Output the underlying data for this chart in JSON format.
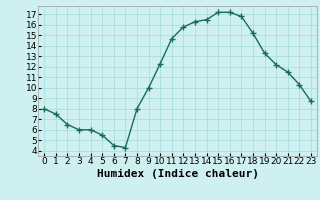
{
  "x": [
    0,
    1,
    2,
    3,
    4,
    5,
    6,
    7,
    8,
    9,
    10,
    11,
    12,
    13,
    14,
    15,
    16,
    17,
    18,
    19,
    20,
    21,
    22,
    23
  ],
  "y": [
    8,
    7.5,
    6.5,
    6,
    6,
    5.5,
    4.5,
    4.3,
    8,
    10,
    12.3,
    14.7,
    15.8,
    16.3,
    16.5,
    17.2,
    17.2,
    16.8,
    15.2,
    13.3,
    12.2,
    11.5,
    10.3,
    8.7
  ],
  "line_color": "#1a6b5a",
  "marker": "+",
  "marker_size": 4,
  "marker_edge_width": 1.0,
  "bg_color": "#cff0f0",
  "grid_color": "#aadddd",
  "xlabel": "Humidex (Indice chaleur)",
  "xlim": [
    -0.5,
    23.5
  ],
  "ylim": [
    3.5,
    17.8
  ],
  "yticks": [
    4,
    5,
    6,
    7,
    8,
    9,
    10,
    11,
    12,
    13,
    14,
    15,
    16,
    17
  ],
  "xticks": [
    0,
    1,
    2,
    3,
    4,
    5,
    6,
    7,
    8,
    9,
    10,
    11,
    12,
    13,
    14,
    15,
    16,
    17,
    18,
    19,
    20,
    21,
    22,
    23
  ],
  "tick_fontsize": 6.5,
  "xlabel_fontsize": 8,
  "line_width": 1.0
}
